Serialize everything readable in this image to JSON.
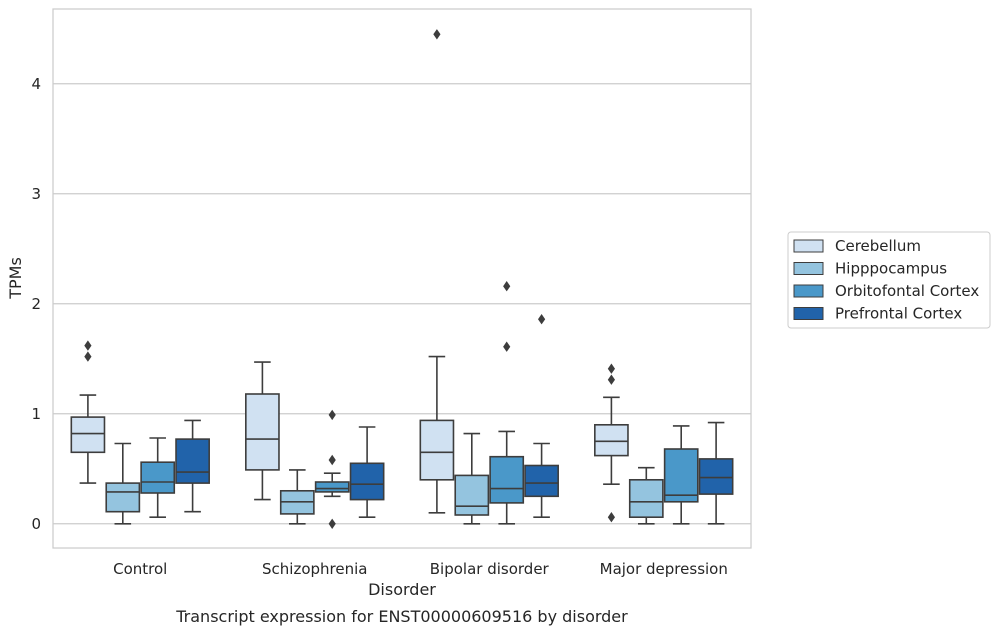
{
  "chart_data": {
    "type": "box",
    "title": "",
    "caption": "Transcript expression for ENST00000609516 by disorder",
    "xlabel": "Disorder",
    "ylabel": "TPMs",
    "ylim": [
      -0.22,
      4.68
    ],
    "yticks": [
      0,
      1,
      2,
      3,
      4
    ],
    "grid": "horizontal",
    "legend_position": "right",
    "categories": [
      "Control",
      "Schizophrenia",
      "Bipolar disorder",
      "Major depression"
    ],
    "series": [
      {
        "name": "Cerebellum",
        "color": "#d0e1f2",
        "boxes": [
          {
            "whisker_low": 0.37,
            "q1": 0.65,
            "median": 0.82,
            "q3": 0.97,
            "whisker_high": 1.17,
            "outliers": [
              1.52,
              1.62
            ]
          },
          {
            "whisker_low": 0.22,
            "q1": 0.49,
            "median": 0.77,
            "q3": 1.18,
            "whisker_high": 1.47,
            "outliers": []
          },
          {
            "whisker_low": 0.1,
            "q1": 0.4,
            "median": 0.65,
            "q3": 0.94,
            "whisker_high": 1.52,
            "outliers": [
              4.45
            ]
          },
          {
            "whisker_low": 0.36,
            "q1": 0.62,
            "median": 0.75,
            "q3": 0.9,
            "whisker_high": 1.15,
            "outliers": [
              0.06,
              1.31,
              1.41
            ]
          }
        ]
      },
      {
        "name": "Hipppocampus",
        "color": "#94c4df",
        "boxes": [
          {
            "whisker_low": 0.0,
            "q1": 0.11,
            "median": 0.29,
            "q3": 0.37,
            "whisker_high": 0.73,
            "outliers": []
          },
          {
            "whisker_low": 0.0,
            "q1": 0.09,
            "median": 0.2,
            "q3": 0.3,
            "whisker_high": 0.49,
            "outliers": []
          },
          {
            "whisker_low": 0.0,
            "q1": 0.08,
            "median": 0.16,
            "q3": 0.44,
            "whisker_high": 0.82,
            "outliers": []
          },
          {
            "whisker_low": 0.0,
            "q1": 0.06,
            "median": 0.2,
            "q3": 0.4,
            "whisker_high": 0.51,
            "outliers": []
          }
        ]
      },
      {
        "name": "Orbitofontal Cortex",
        "color": "#4a98c9",
        "boxes": [
          {
            "whisker_low": 0.06,
            "q1": 0.28,
            "median": 0.38,
            "q3": 0.56,
            "whisker_high": 0.78,
            "outliers": []
          },
          {
            "whisker_low": 0.25,
            "q1": 0.29,
            "median": 0.32,
            "q3": 0.38,
            "whisker_high": 0.46,
            "outliers": [
              0.0,
              0.58,
              0.99
            ]
          },
          {
            "whisker_low": 0.0,
            "q1": 0.19,
            "median": 0.32,
            "q3": 0.61,
            "whisker_high": 0.84,
            "outliers": [
              1.61,
              2.16
            ]
          },
          {
            "whisker_low": 0.0,
            "q1": 0.2,
            "median": 0.26,
            "q3": 0.68,
            "whisker_high": 0.89,
            "outliers": []
          }
        ]
      },
      {
        "name": "Prefrontal Cortex",
        "color": "#2163aa",
        "boxes": [
          {
            "whisker_low": 0.11,
            "q1": 0.37,
            "median": 0.47,
            "q3": 0.77,
            "whisker_high": 0.94,
            "outliers": []
          },
          {
            "whisker_low": 0.06,
            "q1": 0.22,
            "median": 0.36,
            "q3": 0.55,
            "whisker_high": 0.88,
            "outliers": []
          },
          {
            "whisker_low": 0.06,
            "q1": 0.25,
            "median": 0.37,
            "q3": 0.53,
            "whisker_high": 0.73,
            "outliers": [
              1.86
            ]
          },
          {
            "whisker_low": 0.0,
            "q1": 0.27,
            "median": 0.42,
            "q3": 0.59,
            "whisker_high": 0.92,
            "outliers": []
          }
        ]
      }
    ]
  }
}
